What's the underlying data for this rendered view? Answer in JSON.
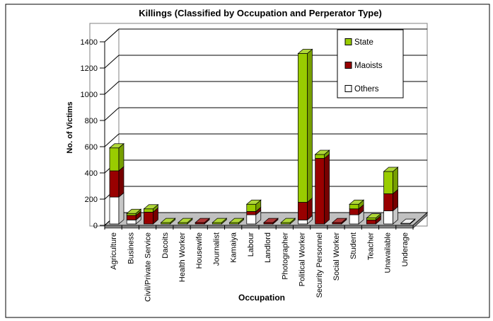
{
  "window": {
    "title": "Killings (Classified by Occupation and Perperator Type)"
  },
  "colors": {
    "state": "#99CC00",
    "maoists": "#990000",
    "others": "#FFFFFF",
    "floor": "#C0C0C0",
    "floor_edge": "#808080",
    "wall": "#FFFFFF",
    "frame": "#808080",
    "gridline": "#000000",
    "background": "#FFFFFF",
    "border": "#000000"
  },
  "chart_data": {
    "type": "bar",
    "subtype": "3d-stacked-column",
    "title": "Killings (Classified by Occupation and Perperator Type)",
    "xlabel": "Occupation",
    "ylabel": "No. of Victims",
    "ylim": [
      0,
      1400
    ],
    "ytick_interval": 200,
    "yticks": [
      0,
      200,
      400,
      600,
      800,
      1000,
      1200,
      1400
    ],
    "grid": true,
    "legend_position": "top-right-inside",
    "legend_order": [
      "State",
      "Maoists",
      "Others"
    ],
    "stack_order_bottom_to_top": [
      "Others",
      "Maoists",
      "State"
    ],
    "categories": [
      "Agriculture",
      "Business",
      "Civil/Private Service",
      "Dacoits",
      "Health Worker",
      "Housewife",
      "Journalist",
      "Kamaiya",
      "Labour",
      "Landlord",
      "Photographer",
      "Political Worker",
      "Security Personnel",
      "Social Worker",
      "Student",
      "Teacher",
      "Unavailable",
      "Underage"
    ],
    "series": [
      {
        "name": "State",
        "color": "#99CC00",
        "values": [
          175,
          15,
          25,
          10,
          10,
          0,
          10,
          10,
          55,
          0,
          10,
          1135,
          30,
          0,
          35,
          15,
          170,
          0
        ]
      },
      {
        "name": "Maoists",
        "color": "#990000",
        "values": [
          200,
          35,
          90,
          0,
          0,
          10,
          0,
          0,
          25,
          10,
          0,
          135,
          500,
          10,
          45,
          30,
          130,
          0
        ]
      },
      {
        "name": "Others",
        "color": "#FFFFFF",
        "values": [
          205,
          30,
          0,
          0,
          0,
          0,
          0,
          0,
          70,
          0,
          0,
          30,
          0,
          0,
          70,
          0,
          100,
          5
        ]
      }
    ]
  }
}
